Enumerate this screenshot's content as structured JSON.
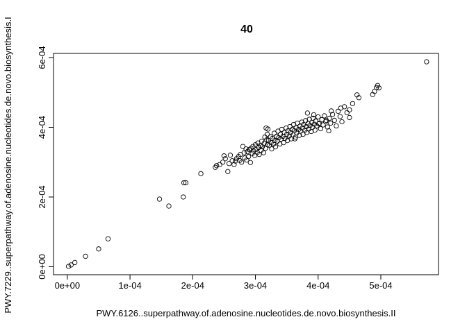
{
  "chart_data": {
    "type": "scatter",
    "title": "40",
    "xlabel": "PWY.6126..superpathway.of.adenosine.nucleotides.de.novo.biosynthesis.II",
    "ylabel": "PWY.7229..superpathway.of.adenosine.nucleotides.de.novo.biosynthesis.I",
    "xlim": [
      -2.2e-05,
      0.000592
    ],
    "ylim": [
      -2.3e-05,
      0.000612
    ],
    "x_ticks": [
      0,
      0.0001,
      0.0002,
      0.0003,
      0.0004,
      0.0005
    ],
    "x_tick_labels": [
      "0e+00",
      "1e-04",
      "2e-04",
      "3e-04",
      "4e-04",
      "5e-04"
    ],
    "y_ticks": [
      0,
      0.0002,
      0.0004,
      0.0006
    ],
    "y_tick_labels": [
      "0e+00",
      "2e-04",
      "4e-04",
      "6e-04"
    ],
    "grid": false,
    "marker": "open-circle",
    "series": [
      {
        "x": [
          2e-06,
          6e-06,
          1.2e-05,
          2.9e-05,
          5e-05,
          6.5e-05,
          0.000147,
          0.000162,
          0.000185,
          0.000186,
          0.000189,
          0.000213,
          0.000236,
          0.000238,
          0.000243,
          0.000248,
          0.00025,
          0.000252,
          0.000256,
          0.000258,
          0.00026,
          0.000263,
          0.000266,
          0.000268,
          0.00027,
          0.000273,
          0.000275,
          0.000276,
          0.000278,
          0.00028,
          0.000282,
          0.000283,
          0.000285,
          0.000286,
          0.000287,
          0.000289,
          0.00029,
          0.000292,
          0.000293,
          0.000295,
          0.000296,
          0.000297,
          0.000299,
          0.0003,
          0.000301,
          0.000303,
          0.000304,
          0.000305,
          0.000306,
          0.000308,
          0.000309,
          0.00031,
          0.000311,
          0.000313,
          0.000314,
          0.000315,
          0.000316,
          0.000318,
          0.000319,
          0.00032,
          0.000321,
          0.000322,
          0.000324,
          0.000325,
          0.000326,
          0.000327,
          0.000329,
          0.00033,
          0.000331,
          0.000332,
          0.000334,
          0.000335,
          0.000336,
          0.000337,
          0.000339,
          0.00034,
          0.000341,
          0.000342,
          0.000344,
          0.000345,
          0.000346,
          0.000347,
          0.000349,
          0.00035,
          0.000351,
          0.000352,
          0.000354,
          0.000355,
          0.000356,
          0.000357,
          0.000359,
          0.00036,
          0.000361,
          0.000362,
          0.000364,
          0.000365,
          0.000366,
          0.000367,
          0.000369,
          0.00037,
          0.000371,
          0.000372,
          0.000374,
          0.000375,
          0.000376,
          0.000377,
          0.000379,
          0.00038,
          0.000381,
          0.000382,
          0.000384,
          0.000385,
          0.000386,
          0.000387,
          0.000389,
          0.00039,
          0.000391,
          0.000392,
          0.000394,
          0.000395,
          0.000396,
          0.000398,
          0.0004,
          0.000402,
          0.000404,
          0.000406,
          0.000408,
          0.00041,
          0.000412,
          0.000415,
          0.000418,
          0.00042,
          0.000423,
          0.000426,
          0.000429,
          0.000432,
          0.000435,
          0.000438,
          0.000442,
          0.000446,
          0.00045,
          0.000455,
          0.000462,
          0.000487,
          0.00049,
          0.000493,
          0.000495,
          0.000497,
          0.000573,
          0.000317,
          0.000319,
          0.000363,
          0.000383,
          0.000393,
          0.000401,
          0.000413,
          0.000417,
          0.000421,
          0.000436,
          0.00045,
          0.000465
        ],
        "y": [
          1e-06,
          5e-06,
          1.2e-05,
          3e-05,
          5.1e-05,
          8e-05,
          0.000194,
          0.000174,
          0.0002,
          0.000241,
          0.000241,
          0.000267,
          0.000285,
          0.00029,
          0.000293,
          0.0003,
          0.000318,
          0.00031,
          0.000273,
          0.000296,
          0.00032,
          0.000304,
          0.000293,
          0.000303,
          0.00031,
          0.000316,
          0.000305,
          0.000322,
          0.0003,
          0.000345,
          0.000327,
          0.000312,
          0.000338,
          0.000306,
          0.00033,
          0.000316,
          0.000336,
          0.000299,
          0.00034,
          0.000325,
          0.000345,
          0.000332,
          0.000319,
          0.00035,
          0.000336,
          0.000328,
          0.000355,
          0.000342,
          0.000322,
          0.000348,
          0.000334,
          0.00036,
          0.000344,
          0.000327,
          0.000354,
          0.000372,
          0.00034,
          0.000364,
          0.00035,
          0.000395,
          0.000362,
          0.000348,
          0.000373,
          0.000356,
          0.000338,
          0.000368,
          0.000352,
          0.000383,
          0.000362,
          0.000344,
          0.000374,
          0.00036,
          0.000389,
          0.00037,
          0.000352,
          0.00038,
          0.000366,
          0.000394,
          0.000374,
          0.000356,
          0.000385,
          0.000368,
          0.000398,
          0.00038,
          0.000362,
          0.00039,
          0.000375,
          0.000402,
          0.000385,
          0.000367,
          0.000394,
          0.000378,
          0.000408,
          0.00039,
          0.000372,
          0.000399,
          0.000384,
          0.000412,
          0.000394,
          0.000377,
          0.000403,
          0.000389,
          0.000415,
          0.000398,
          0.00038,
          0.000408,
          0.000392,
          0.000419,
          0.000402,
          0.000385,
          0.000411,
          0.000395,
          0.000423,
          0.000405,
          0.000388,
          0.000414,
          0.0004,
          0.000426,
          0.000409,
          0.000392,
          0.000418,
          0.000404,
          0.00043,
          0.000412,
          0.000396,
          0.000422,
          0.000407,
          0.000433,
          0.000416,
          0.000401,
          0.000426,
          0.000412,
          0.000437,
          0.00042,
          0.000404,
          0.000446,
          0.000431,
          0.000416,
          0.000459,
          0.000442,
          0.000428,
          0.000468,
          0.000493,
          0.000494,
          0.000503,
          0.000514,
          0.00052,
          0.000513,
          0.000588,
          0.000398,
          0.00038,
          0.000367,
          0.000441,
          0.000436,
          0.00041,
          0.00042,
          0.00039,
          0.000447,
          0.000455,
          0.00045,
          0.000485
        ]
      }
    ]
  }
}
